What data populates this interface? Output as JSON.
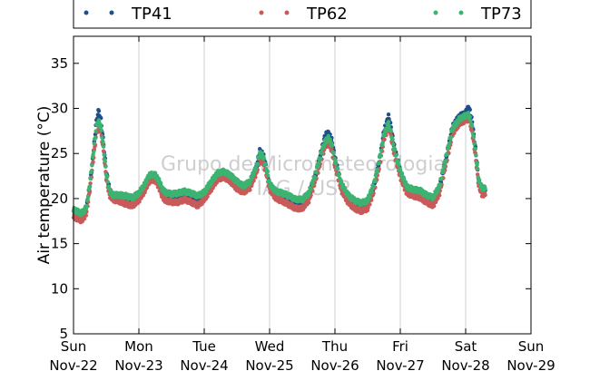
{
  "chart_data": {
    "type": "scatter",
    "xlabel": "",
    "ylabel": "Air temperature (°C)",
    "ylim": [
      5,
      38
    ],
    "yticks": [
      5,
      10,
      15,
      20,
      25,
      30,
      35
    ],
    "xlim": [
      "2015-11-22",
      "2015-11-29"
    ],
    "x_tick_labels": [
      {
        "day": "Sun",
        "date": "Nov-22"
      },
      {
        "day": "Mon",
        "date": "Nov-23"
      },
      {
        "day": "Tue",
        "date": "Nov-24"
      },
      {
        "day": "Wed",
        "date": "Nov-25"
      },
      {
        "day": "Thu",
        "date": "Nov-26"
      },
      {
        "day": "Fri",
        "date": "Nov-27"
      },
      {
        "day": "Sat",
        "date": "Nov-28"
      },
      {
        "day": "Sun",
        "date": "Nov-29"
      }
    ],
    "grid": "vertical",
    "legend_position": "top",
    "watermark": [
      "Grupo de Micrometeorologia",
      "IAG / USP"
    ],
    "series": [
      {
        "name": "TP41",
        "color": "#1f4e8c",
        "points": [
          [
            0.0,
            18.6
          ],
          [
            0.05,
            18.3
          ],
          [
            0.1,
            18.1
          ],
          [
            0.15,
            18.2
          ],
          [
            0.2,
            19.0
          ],
          [
            0.25,
            21.5
          ],
          [
            0.3,
            24.8
          ],
          [
            0.35,
            28.6
          ],
          [
            0.38,
            29.7
          ],
          [
            0.42,
            28.7
          ],
          [
            0.46,
            26.0
          ],
          [
            0.5,
            23.0
          ],
          [
            0.55,
            21.0
          ],
          [
            0.6,
            20.4
          ],
          [
            0.7,
            20.3
          ],
          [
            0.8,
            20.0
          ],
          [
            0.9,
            19.8
          ],
          [
            1.0,
            20.3
          ],
          [
            1.1,
            21.5
          ],
          [
            1.15,
            22.4
          ],
          [
            1.2,
            22.6
          ],
          [
            1.25,
            22.5
          ],
          [
            1.3,
            22.0
          ],
          [
            1.35,
            21.1
          ],
          [
            1.4,
            20.5
          ],
          [
            1.5,
            20.2
          ],
          [
            1.6,
            20.2
          ],
          [
            1.7,
            20.5
          ],
          [
            1.8,
            20.2
          ],
          [
            1.9,
            19.9
          ],
          [
            2.0,
            20.4
          ],
          [
            2.1,
            21.5
          ],
          [
            2.2,
            22.6
          ],
          [
            2.3,
            22.9
          ],
          [
            2.4,
            22.4
          ],
          [
            2.5,
            21.6
          ],
          [
            2.6,
            21.1
          ],
          [
            2.7,
            21.6
          ],
          [
            2.8,
            23.5
          ],
          [
            2.85,
            25.3
          ],
          [
            2.9,
            24.9
          ],
          [
            2.95,
            23.4
          ],
          [
            3.0,
            21.5
          ],
          [
            3.1,
            20.6
          ],
          [
            3.2,
            20.3
          ],
          [
            3.3,
            20.0
          ],
          [
            3.4,
            19.5
          ],
          [
            3.5,
            19.5
          ],
          [
            3.6,
            20.3
          ],
          [
            3.7,
            22.5
          ],
          [
            3.8,
            25.5
          ],
          [
            3.85,
            27.0
          ],
          [
            3.9,
            27.3
          ],
          [
            3.95,
            26.5
          ],
          [
            4.0,
            24.5
          ],
          [
            4.1,
            21.5
          ],
          [
            4.2,
            20.2
          ],
          [
            4.3,
            19.5
          ],
          [
            4.4,
            19.1
          ],
          [
            4.5,
            19.4
          ],
          [
            4.6,
            21.5
          ],
          [
            4.7,
            25.0
          ],
          [
            4.75,
            27.5
          ],
          [
            4.8,
            28.6
          ],
          [
            4.82,
            29.3
          ],
          [
            4.85,
            28.2
          ],
          [
            4.9,
            26.0
          ],
          [
            5.0,
            23.0
          ],
          [
            5.1,
            21.2
          ],
          [
            5.2,
            20.9
          ],
          [
            5.3,
            20.8
          ],
          [
            5.4,
            20.2
          ],
          [
            5.5,
            19.8
          ],
          [
            5.6,
            21.2
          ],
          [
            5.7,
            24.5
          ],
          [
            5.8,
            28.0
          ],
          [
            5.9,
            29.1
          ],
          [
            6.0,
            29.5
          ],
          [
            6.05,
            30.2
          ],
          [
            6.1,
            28.5
          ],
          [
            6.15,
            25.5
          ],
          [
            6.2,
            22.0
          ],
          [
            6.25,
            21.0
          ],
          [
            6.3,
            20.9
          ]
        ]
      },
      {
        "name": "TP62",
        "color": "#c85a5a",
        "points": [
          [
            0.0,
            18.0
          ],
          [
            0.05,
            17.8
          ],
          [
            0.1,
            17.6
          ],
          [
            0.15,
            17.7
          ],
          [
            0.2,
            18.5
          ],
          [
            0.25,
            21.0
          ],
          [
            0.3,
            24.2
          ],
          [
            0.35,
            27.2
          ],
          [
            0.38,
            28.0
          ],
          [
            0.42,
            27.4
          ],
          [
            0.46,
            25.2
          ],
          [
            0.5,
            22.3
          ],
          [
            0.55,
            20.4
          ],
          [
            0.6,
            19.9
          ],
          [
            0.7,
            19.7
          ],
          [
            0.8,
            19.4
          ],
          [
            0.9,
            19.2
          ],
          [
            1.0,
            19.8
          ],
          [
            1.1,
            21.0
          ],
          [
            1.15,
            21.8
          ],
          [
            1.2,
            22.1
          ],
          [
            1.25,
            22.0
          ],
          [
            1.3,
            21.4
          ],
          [
            1.35,
            20.4
          ],
          [
            1.4,
            19.8
          ],
          [
            1.5,
            19.6
          ],
          [
            1.6,
            19.6
          ],
          [
            1.7,
            19.9
          ],
          [
            1.8,
            19.6
          ],
          [
            1.9,
            19.2
          ],
          [
            2.0,
            19.9
          ],
          [
            2.1,
            21.0
          ],
          [
            2.2,
            22.1
          ],
          [
            2.3,
            22.4
          ],
          [
            2.4,
            21.9
          ],
          [
            2.5,
            21.1
          ],
          [
            2.6,
            20.7
          ],
          [
            2.7,
            21.2
          ],
          [
            2.8,
            22.9
          ],
          [
            2.85,
            24.2
          ],
          [
            2.9,
            24.0
          ],
          [
            2.95,
            22.8
          ],
          [
            3.0,
            21.0
          ],
          [
            3.1,
            20.0
          ],
          [
            3.2,
            19.7
          ],
          [
            3.3,
            19.3
          ],
          [
            3.4,
            18.9
          ],
          [
            3.5,
            18.9
          ],
          [
            3.6,
            19.8
          ],
          [
            3.7,
            22.0
          ],
          [
            3.8,
            24.6
          ],
          [
            3.85,
            25.8
          ],
          [
            3.9,
            26.1
          ],
          [
            3.95,
            25.4
          ],
          [
            4.0,
            23.6
          ],
          [
            4.1,
            20.9
          ],
          [
            4.2,
            19.6
          ],
          [
            4.3,
            18.9
          ],
          [
            4.4,
            18.6
          ],
          [
            4.5,
            18.9
          ],
          [
            4.6,
            20.9
          ],
          [
            4.7,
            24.3
          ],
          [
            4.75,
            26.6
          ],
          [
            4.8,
            27.6
          ],
          [
            4.82,
            28.0
          ],
          [
            4.85,
            27.2
          ],
          [
            4.9,
            25.2
          ],
          [
            5.0,
            22.4
          ],
          [
            5.1,
            20.6
          ],
          [
            5.2,
            20.3
          ],
          [
            5.3,
            20.1
          ],
          [
            5.4,
            19.6
          ],
          [
            5.5,
            19.2
          ],
          [
            5.6,
            20.6
          ],
          [
            5.7,
            23.9
          ],
          [
            5.8,
            27.2
          ],
          [
            5.9,
            28.3
          ],
          [
            6.0,
            28.7
          ],
          [
            6.05,
            28.8
          ],
          [
            6.1,
            27.4
          ],
          [
            6.15,
            24.8
          ],
          [
            6.2,
            21.4
          ],
          [
            6.25,
            20.5
          ],
          [
            6.3,
            20.4
          ]
        ]
      },
      {
        "name": "TP73",
        "color": "#3cb371",
        "points": [
          [
            0.0,
            18.8
          ],
          [
            0.05,
            18.6
          ],
          [
            0.1,
            18.4
          ],
          [
            0.15,
            18.5
          ],
          [
            0.2,
            19.2
          ],
          [
            0.25,
            21.6
          ],
          [
            0.3,
            24.9
          ],
          [
            0.35,
            28.0
          ],
          [
            0.38,
            28.6
          ],
          [
            0.42,
            27.9
          ],
          [
            0.46,
            25.6
          ],
          [
            0.5,
            22.8
          ],
          [
            0.55,
            20.9
          ],
          [
            0.6,
            20.4
          ],
          [
            0.7,
            20.4
          ],
          [
            0.8,
            20.3
          ],
          [
            0.9,
            20.1
          ],
          [
            1.0,
            20.6
          ],
          [
            1.1,
            21.7
          ],
          [
            1.15,
            22.5
          ],
          [
            1.2,
            22.7
          ],
          [
            1.25,
            22.6
          ],
          [
            1.3,
            22.1
          ],
          [
            1.35,
            21.2
          ],
          [
            1.4,
            20.7
          ],
          [
            1.5,
            20.5
          ],
          [
            1.6,
            20.6
          ],
          [
            1.7,
            20.8
          ],
          [
            1.8,
            20.6
          ],
          [
            1.9,
            20.3
          ],
          [
            2.0,
            20.7
          ],
          [
            2.1,
            21.8
          ],
          [
            2.2,
            22.8
          ],
          [
            2.3,
            23.0
          ],
          [
            2.4,
            22.6
          ],
          [
            2.5,
            21.9
          ],
          [
            2.6,
            21.4
          ],
          [
            2.7,
            21.9
          ],
          [
            2.8,
            23.6
          ],
          [
            2.85,
            25.0
          ],
          [
            2.9,
            24.7
          ],
          [
            2.95,
            23.4
          ],
          [
            3.0,
            21.6
          ],
          [
            3.1,
            20.8
          ],
          [
            3.2,
            20.6
          ],
          [
            3.3,
            20.3
          ],
          [
            3.4,
            19.9
          ],
          [
            3.5,
            19.9
          ],
          [
            3.6,
            20.6
          ],
          [
            3.7,
            22.7
          ],
          [
            3.8,
            25.3
          ],
          [
            3.85,
            26.4
          ],
          [
            3.9,
            26.7
          ],
          [
            3.95,
            26.0
          ],
          [
            4.0,
            24.2
          ],
          [
            4.1,
            21.6
          ],
          [
            4.2,
            20.4
          ],
          [
            4.3,
            19.8
          ],
          [
            4.4,
            19.5
          ],
          [
            4.5,
            19.8
          ],
          [
            4.6,
            21.7
          ],
          [
            4.7,
            25.0
          ],
          [
            4.75,
            27.1
          ],
          [
            4.8,
            28.0
          ],
          [
            4.82,
            28.3
          ],
          [
            4.85,
            27.6
          ],
          [
            4.9,
            25.7
          ],
          [
            5.0,
            23.0
          ],
          [
            5.1,
            21.3
          ],
          [
            5.2,
            21.0
          ],
          [
            5.3,
            20.9
          ],
          [
            5.4,
            20.4
          ],
          [
            5.5,
            20.1
          ],
          [
            5.6,
            21.4
          ],
          [
            5.7,
            24.6
          ],
          [
            5.8,
            27.8
          ],
          [
            5.9,
            28.8
          ],
          [
            6.0,
            29.2
          ],
          [
            6.05,
            29.3
          ],
          [
            6.1,
            27.9
          ],
          [
            6.15,
            25.3
          ],
          [
            6.2,
            22.0
          ],
          [
            6.25,
            21.2
          ],
          [
            6.3,
            21.1
          ]
        ]
      }
    ]
  }
}
